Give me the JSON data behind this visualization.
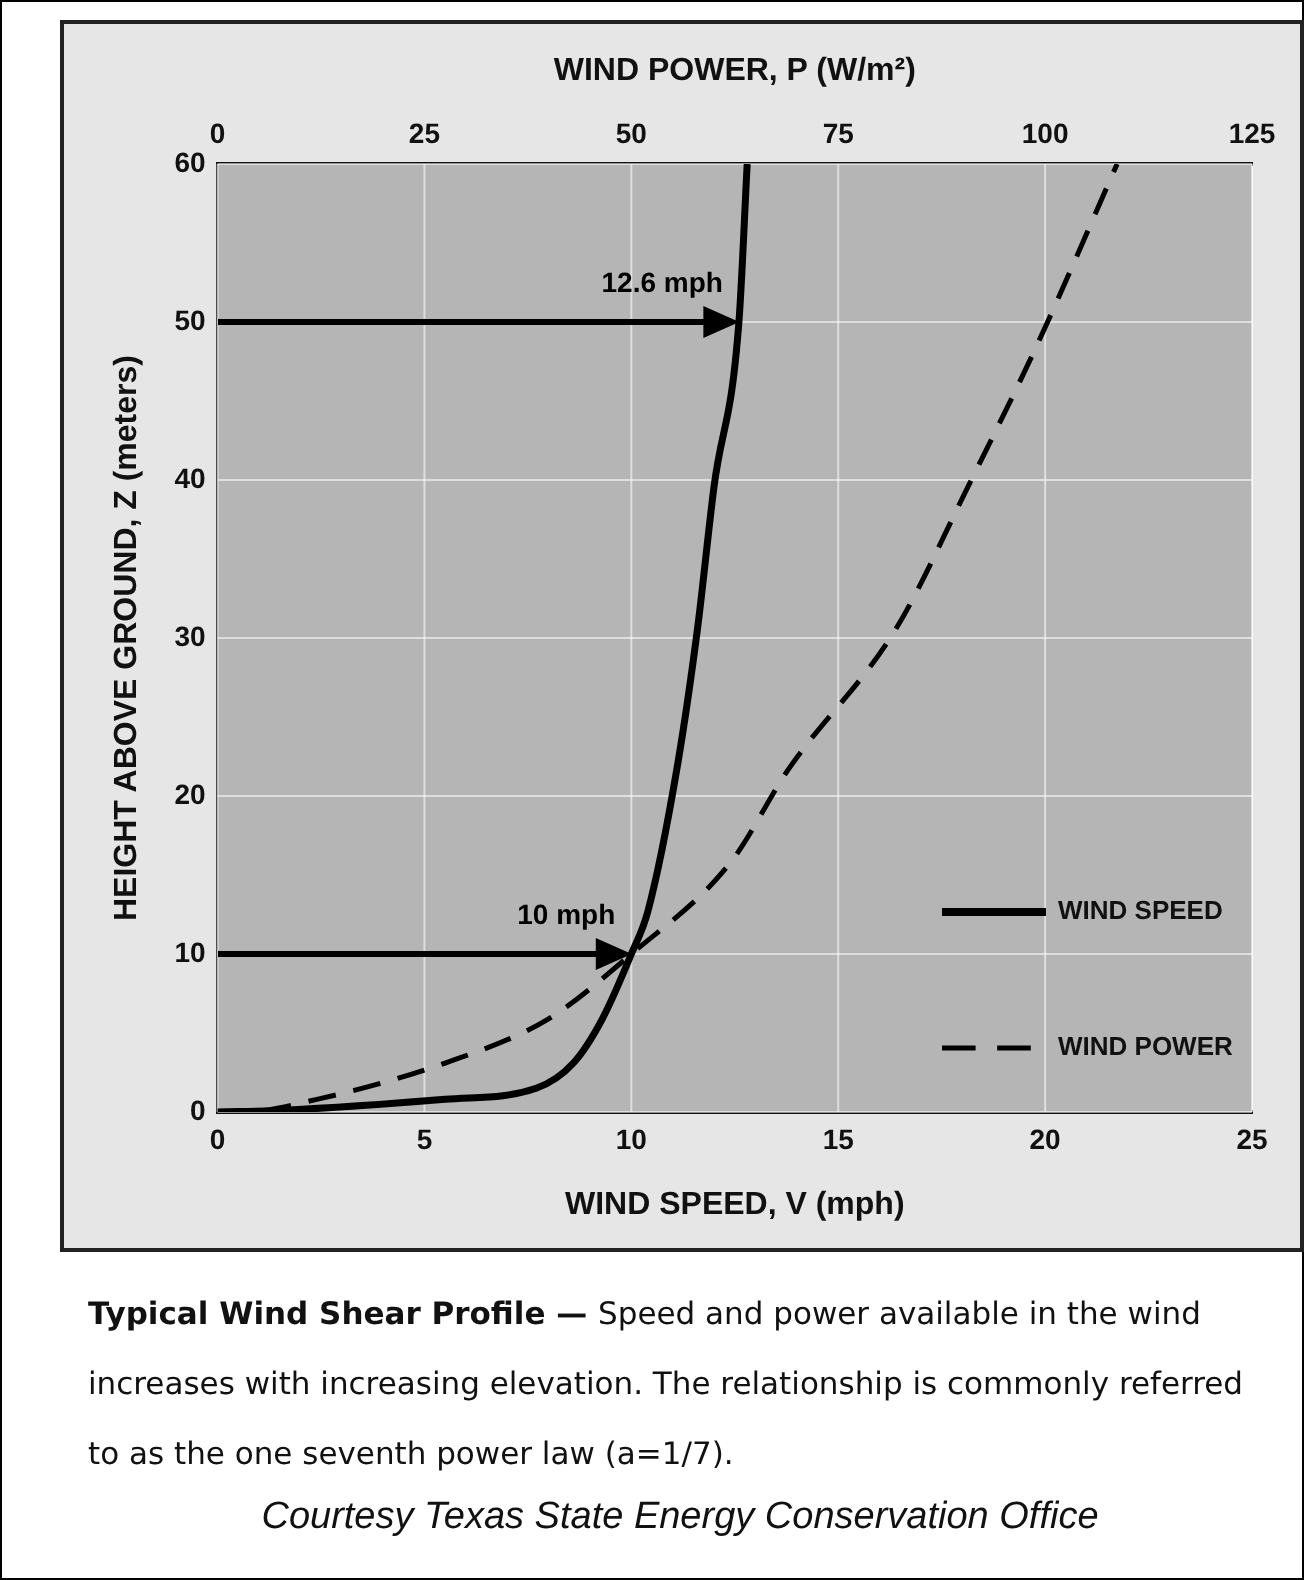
{
  "chart_data": {
    "type": "line",
    "xlabel": "WIND SPEED, V (mph)",
    "x2label": "WIND POWER, P (W/m²)",
    "ylabel": "HEIGHT ABOVE GROUND, Z (meters)",
    "xlim": [
      0,
      25
    ],
    "xticks": [
      0,
      5,
      10,
      15,
      20,
      25
    ],
    "x2lim": [
      0,
      125
    ],
    "x2ticks": [
      0,
      25,
      50,
      75,
      100,
      125
    ],
    "ylim": [
      0,
      60
    ],
    "yticks": [
      0,
      10,
      20,
      30,
      40,
      50,
      60
    ],
    "series": [
      {
        "name": "WIND SPEED",
        "color": "#000000",
        "line_style": "solid",
        "x": [
          0,
          1.5,
          5.5,
          7.7,
          8.6,
          9.3,
          10,
          10.4,
          11.1,
          11.6,
          12.0,
          12.6,
          12.8
        ],
        "values": [
          0,
          0.1,
          0.8,
          1.5,
          3.1,
          5.9,
          10,
          12.7,
          21.7,
          30.6,
          39.6,
          50,
          60
        ]
      },
      {
        "name": "WIND POWER",
        "color": "#000000",
        "line_style": "dashed",
        "axis": "x2",
        "x": [
          0,
          3,
          12,
          27.5,
          40,
          50,
          62,
          69,
          82,
          90.7,
          98.9,
          108.7
        ],
        "values": [
          0,
          0,
          0.8,
          3.1,
          5.9,
          10,
          15.8,
          21.7,
          30.6,
          39.6,
          48.4,
          60
        ]
      }
    ],
    "marker": "none",
    "grid": true,
    "legend": "bottom right",
    "annotations": [
      {
        "text": "12.6 mph",
        "x": 12.6,
        "y": 50
      },
      {
        "text": "10 mph",
        "x": 10,
        "y": 10
      },
      "Typical Wind Shear Profile —",
      "Speed and power available in the wind increases with increasing elevation. The relationship is commonly referred to as the one seventh power law (a=1/7).",
      "Courtesy Texas State Energy Conservation Office"
    ]
  }
}
